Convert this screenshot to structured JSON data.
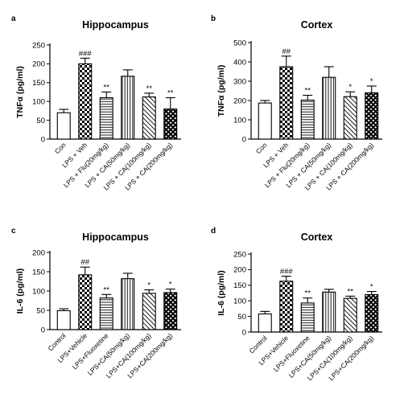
{
  "chart_data": [
    {
      "panel": "a",
      "type": "bar",
      "title": "Hippocampus",
      "ylabel": "TNFα (pg/ml)",
      "ylim": [
        0,
        250
      ],
      "yticks": [
        0,
        50,
        100,
        150,
        200,
        250
      ],
      "categories": [
        "Con",
        "LPS + Veh",
        "LPS + Flu(20mg/kg)",
        "LPS + CA(50mg/kg)",
        "LPS + CA(100mg/kg)",
        "LPS + CA(200mg/kg)"
      ],
      "values": [
        70,
        200,
        110,
        167,
        112,
        80
      ],
      "errors": [
        9,
        15,
        15,
        17,
        10,
        30
      ],
      "significance": [
        "",
        "###",
        "**",
        "",
        "**",
        "**"
      ],
      "patterns": [
        "none",
        "checker",
        "hlines",
        "vlines",
        "diag",
        "crosshatch"
      ]
    },
    {
      "panel": "b",
      "type": "bar",
      "title": "Cortex",
      "ylabel": "TNFα (pg/ml)",
      "ylim": [
        0,
        500
      ],
      "yticks": [
        0,
        100,
        200,
        300,
        400,
        500
      ],
      "categories": [
        "Con",
        "LPS + Veh",
        "LPS + Flu(20mg/kg)",
        "LPS + CA(50mg/kg)",
        "LPS + CA(100mg/kg)",
        "LPS + CA(200mg/kg)"
      ],
      "values": [
        187,
        375,
        202,
        320,
        220,
        240
      ],
      "errors": [
        13,
        55,
        25,
        55,
        25,
        35
      ],
      "significance": [
        "",
        "##",
        "**",
        "",
        "*",
        "*"
      ],
      "patterns": [
        "none",
        "checker",
        "hlines",
        "vlines",
        "diag",
        "crosshatch"
      ]
    },
    {
      "panel": "c",
      "type": "bar",
      "title": "Hippocampus",
      "ylabel": "IL-6 (pg/ml)",
      "ylim": [
        0,
        200
      ],
      "yticks": [
        0,
        50,
        100,
        150,
        200
      ],
      "categories": [
        "Control",
        "LPS+Vehicle",
        "LPS+Fluoxetine",
        "LPS+CA(50mg/kg)",
        "LPS+CA(100mg/kg)",
        "LPS+CA(200mg/kg)"
      ],
      "values": [
        49,
        142,
        82,
        132,
        94,
        96
      ],
      "errors": [
        5,
        20,
        9,
        14,
        9,
        9
      ],
      "significance": [
        "",
        "##",
        "**",
        "",
        "*",
        "*"
      ],
      "patterns": [
        "none",
        "checker",
        "hlines",
        "vlines",
        "diag",
        "crosshatch"
      ]
    },
    {
      "panel": "d",
      "type": "bar",
      "title": "Cortex",
      "ylabel": "IL-6 (pg/ml)",
      "ylim": [
        0,
        250
      ],
      "yticks": [
        0,
        50,
        100,
        150,
        200,
        250
      ],
      "categories": [
        "Control",
        "LPS+Vehicle",
        "LPS+Fluoxetine",
        "LPS+CA(50mg/kg)",
        "LPS+CA(100mg/kg)",
        "LPS+CA(200mg/kg)"
      ],
      "values": [
        58,
        163,
        93,
        128,
        108,
        120
      ],
      "errors": [
        8,
        16,
        16,
        9,
        7,
        10
      ],
      "significance": [
        "",
        "###",
        "**",
        "",
        "**",
        "*"
      ],
      "patterns": [
        "none",
        "checker",
        "hlines",
        "vlines",
        "diag",
        "crosshatch"
      ]
    }
  ]
}
